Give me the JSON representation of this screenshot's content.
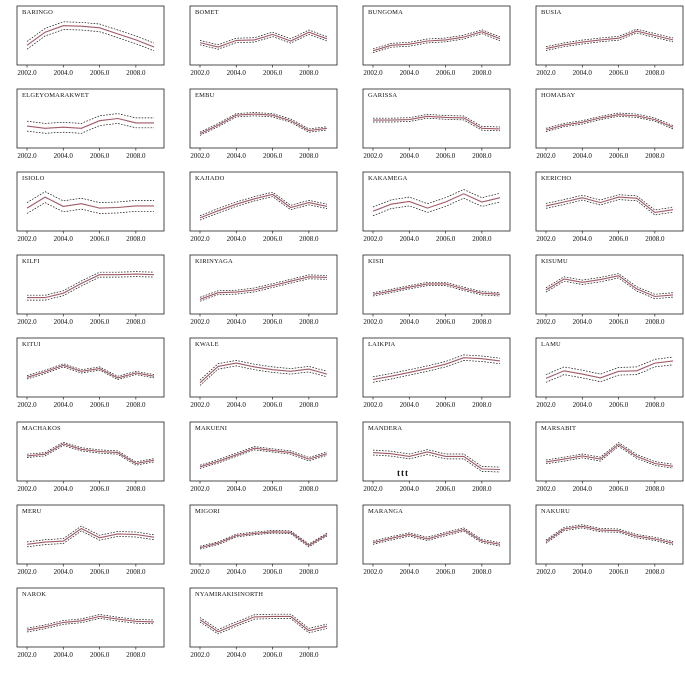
{
  "colors": {
    "mean": "#a05a66",
    "ci": "#111111",
    "frame": "#222222"
  },
  "chart_data": {
    "type": "line",
    "x": [
      2002,
      2003,
      2004,
      2005,
      2006,
      2007,
      2008,
      2009
    ],
    "xticks": [
      "2002.0",
      "2004.0",
      "2006.0",
      "2008.0"
    ],
    "panels": [
      {
        "title": "BARINGO",
        "y": [
          4,
          6.4,
          7.6,
          7.5,
          7.2,
          6.1,
          5.0,
          3.7
        ],
        "band": 0.7
      },
      {
        "title": "BOMET",
        "y": [
          4.5,
          3.7,
          4.9,
          5.0,
          6.0,
          4.8,
          6.4,
          5.2
        ],
        "band": 0.4
      },
      {
        "title": "BUNGOMA",
        "y": [
          3.0,
          4.0,
          4.2,
          4.8,
          5.0,
          5.5,
          6.5,
          5.2
        ],
        "band": 0.35
      },
      {
        "title": "BUSIA",
        "y": [
          3.4,
          4.1,
          4.6,
          5.0,
          5.3,
          6.6,
          5.8,
          5.0
        ],
        "band": 0.35
      },
      {
        "title": "ELGEYOMARAKWET",
        "y": [
          4.4,
          4.0,
          4.2,
          4.0,
          5.4,
          5.8,
          5.0,
          5.0
        ],
        "band": 0.9
      },
      {
        "title": "EMBU",
        "y": [
          3.0,
          4.6,
          6.4,
          6.6,
          6.4,
          5.4,
          3.6,
          4.0
        ],
        "band": 0.3
      },
      {
        "title": "GARISSA",
        "y": [
          5.5,
          5.5,
          5.6,
          6.2,
          6.0,
          5.9,
          4.0,
          3.9
        ],
        "band": 0.35
      },
      {
        "title": "HOMABAY",
        "y": [
          3.7,
          4.6,
          5.1,
          5.9,
          6.5,
          6.3,
          5.6,
          4.2
        ],
        "band": 0.3
      },
      {
        "title": "ISIOLO",
        "y": [
          4.6,
          6.6,
          4.9,
          5.4,
          4.6,
          4.7,
          5.0,
          5.0
        ],
        "band": 1.0
      },
      {
        "title": "KAJIADO",
        "y": [
          2.8,
          4.1,
          5.3,
          6.3,
          7.1,
          4.7,
          5.6,
          4.9
        ],
        "band": 0.4
      },
      {
        "title": "KAKAMEGA",
        "y": [
          4.0,
          5.3,
          5.8,
          4.6,
          5.7,
          7.2,
          5.7,
          6.5
        ],
        "band": 0.8
      },
      {
        "title": "KERICHO",
        "y": [
          5.0,
          5.7,
          6.5,
          5.6,
          6.6,
          6.4,
          3.8,
          4.3
        ],
        "band": 0.45
      },
      {
        "title": "KILFI",
        "y": [
          3.4,
          3.4,
          4.2,
          6.0,
          7.6,
          7.6,
          7.7,
          7.6
        ],
        "band": 0.45
      },
      {
        "title": "KIRINYAGA",
        "y": [
          3.1,
          4.3,
          4.4,
          4.8,
          5.6,
          6.4,
          7.2,
          7.1
        ],
        "band": 0.35
      },
      {
        "title": "KISII",
        "y": [
          4.0,
          4.6,
          5.3,
          5.9,
          5.9,
          5.0,
          4.2,
          4.0
        ],
        "band": 0.3
      },
      {
        "title": "KISUMU",
        "y": [
          4.8,
          6.8,
          6.2,
          6.7,
          7.4,
          5.0,
          3.6,
          3.9
        ],
        "band": 0.4
      },
      {
        "title": "KITUI",
        "y": [
          4.0,
          5.0,
          6.2,
          5.1,
          5.6,
          3.9,
          4.8,
          4.2
        ],
        "band": 0.3
      },
      {
        "title": "KWALE",
        "y": [
          3.0,
          6.0,
          6.6,
          5.9,
          5.4,
          5.1,
          5.5,
          4.6
        ],
        "band": 0.5
      },
      {
        "title": "LAIKPIA",
        "y": [
          3.6,
          4.2,
          4.9,
          5.6,
          6.4,
          7.6,
          7.4,
          7.0
        ],
        "band": 0.5
      },
      {
        "title": "LAMU",
        "y": [
          3.8,
          5.2,
          4.6,
          3.9,
          5.1,
          5.2,
          6.6,
          7.0
        ],
        "band": 0.7
      },
      {
        "title": "MACHAKOS",
        "y": [
          5.0,
          5.3,
          7.2,
          6.2,
          5.8,
          5.6,
          3.6,
          4.2
        ],
        "band": 0.3
      },
      {
        "title": "MAKUENI",
        "y": [
          3.0,
          4.0,
          5.2,
          6.4,
          6.0,
          5.6,
          4.4,
          5.4
        ],
        "band": 0.3
      },
      {
        "title": "MANDERA",
        "y": [
          5.6,
          5.4,
          4.9,
          5.7,
          4.9,
          4.9,
          2.6,
          2.5
        ],
        "band": 0.45
      },
      {
        "title": "MARSABIT",
        "y": [
          3.9,
          4.4,
          5.0,
          4.4,
          7.1,
          4.9,
          3.6,
          3.1
        ],
        "band": 0.35
      },
      {
        "title": "MERU",
        "y": [
          4.0,
          4.4,
          4.6,
          6.9,
          5.2,
          5.9,
          5.8,
          5.3
        ],
        "band": 0.45
      },
      {
        "title": "MIGORI",
        "y": [
          3.4,
          4.2,
          5.6,
          6.0,
          6.3,
          6.2,
          3.8,
          5.8
        ],
        "band": 0.25
      },
      {
        "title": "MARANGA",
        "y": [
          4.3,
          5.1,
          5.8,
          5.0,
          5.9,
          6.7,
          4.6,
          4.0
        ],
        "band": 0.3
      },
      {
        "title": "NAKURU",
        "y": [
          4.5,
          6.8,
          7.3,
          6.6,
          6.5,
          5.5,
          5.0,
          4.2
        ],
        "band": 0.3
      },
      {
        "title": "NAROK",
        "y": [
          3.5,
          4.1,
          4.9,
          5.2,
          6.0,
          5.5,
          5.1,
          5.0
        ],
        "band": 0.35
      },
      {
        "title": "NYAMIRAKISINORTH",
        "y": [
          5.4,
          3.2,
          4.6,
          5.9,
          6.0,
          6.0,
          3.4,
          4.2
        ],
        "band": 0.4
      }
    ],
    "annotation": "ttt"
  }
}
